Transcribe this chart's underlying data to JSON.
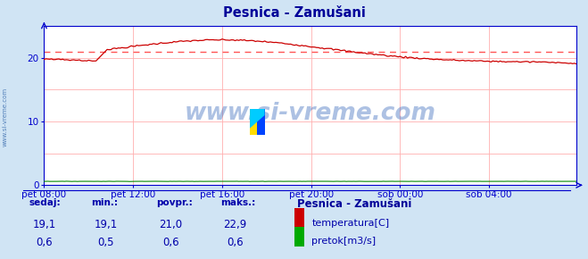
{
  "title": "Pesnica - Zamušani",
  "bg_color": "#d0e4f4",
  "plot_bg_color": "#ffffff",
  "grid_color": "#ffb0b0",
  "axis_color": "#0000cc",
  "title_color": "#000099",
  "label_color": "#0000aa",
  "temp_color": "#cc0000",
  "flow_color": "#008800",
  "avg_line_color": "#ff5555",
  "avg_value": 21.0,
  "y_min": 0,
  "y_max": 25,
  "y_ticks": [
    0,
    10,
    20
  ],
  "x_tick_labels": [
    "pet 08:00",
    "pet 12:00",
    "pet 16:00",
    "pet 20:00",
    "sob 00:00",
    "sob 04:00"
  ],
  "watermark": "www.si-vreme.com",
  "watermark_color": "#3366bb",
  "footer_title": "Pesnica - Zamušani",
  "footer_labels": [
    "sedaj:",
    "min.:",
    "povpr.:",
    "maks.:"
  ],
  "footer_temp": [
    "19,1",
    "19,1",
    "21,0",
    "22,9"
  ],
  "footer_flow": [
    "0,6",
    "0,5",
    "0,6",
    "0,6"
  ],
  "legend_temp": "temperatura[C]",
  "legend_flow": "pretok[m3/s]",
  "temp_color_box": "#cc0000",
  "flow_color_box": "#00aa00",
  "n_points": 288,
  "x_tick_pos": [
    0,
    48,
    96,
    144,
    192,
    240
  ]
}
